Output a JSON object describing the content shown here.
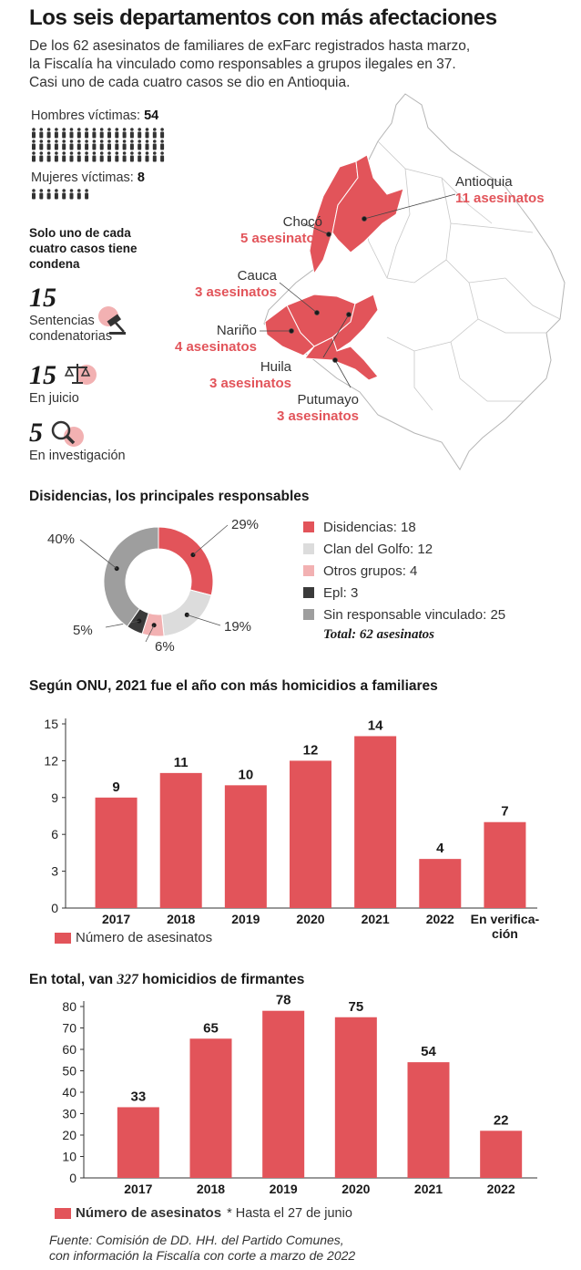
{
  "header": {
    "title": "Los seis departamentos con más afectaciones",
    "intro": "De los 62 asesinatos de familiares de exFarc registrados hasta marzo, la Fiscalía ha vinculado como responsables a grupos ilegales en 37. Casi uno de cada cuatro casos se dio en Antioquia."
  },
  "victims": {
    "men_label": "Hombres víctimas:",
    "men_value": "54",
    "women_label": "Mujeres víctimas:",
    "women_value": "8",
    "men_count": 54,
    "women_count": 8
  },
  "conviction": {
    "heading": "Solo uno de cada cuatro casos tiene condena",
    "items": [
      {
        "value": "15",
        "label": "Sentencias condenatorias",
        "icon": "gavel-icon"
      },
      {
        "value": "15",
        "label": "En juicio",
        "icon": "scales-icon"
      },
      {
        "value": "5",
        "label": "En investigación",
        "icon": "magnifier-icon"
      }
    ]
  },
  "map": {
    "highlight_color": "#e2545a",
    "departments": [
      {
        "name": "Antioquia",
        "count": "11 asesinatos"
      },
      {
        "name": "Chocó",
        "count": "5 asesinatos"
      },
      {
        "name": "Cauca",
        "count": "3 asesinatos"
      },
      {
        "name": "Nariño",
        "count": "4 asesinatos"
      },
      {
        "name": "Huila",
        "count": "3 asesinatos"
      },
      {
        "name": "Putumayo",
        "count": "3 asesinatos"
      }
    ]
  },
  "chart_data": [
    {
      "type": "pie",
      "title": "Disidencias, los principales responsables",
      "donut": true,
      "slices": [
        {
          "name": "Disidencias",
          "value": 18,
          "percent_label": "29%",
          "legend": "Disidencias: 18",
          "color": "#e2545a"
        },
        {
          "name": "Clan del Golfo",
          "value": 12,
          "percent_label": "19%",
          "legend": "Clan del Golfo:  12",
          "color": "#dcdcdc"
        },
        {
          "name": "Otros grupos",
          "value": 4,
          "percent_label": "6%",
          "legend": "Otros grupos: 4",
          "color": "#f2b1b2"
        },
        {
          "name": "Epl",
          "value": 3,
          "percent_label": "5%",
          "legend": "Epl: 3",
          "color": "#3a3a3a"
        },
        {
          "name": "Sin responsable vinculado",
          "value": 25,
          "percent_label": "40%",
          "legend": "Sin responsable vinculado: 25",
          "color": "#9e9e9e"
        }
      ],
      "total_label": "Total: 62 asesinatos"
    },
    {
      "type": "bar",
      "title": "Según ONU, 2021 fue el año con más homicidios a familiares",
      "categories": [
        "2017",
        "2018",
        "2019",
        "2020",
        "2021",
        "2022",
        "En verificación"
      ],
      "category_lines": [
        [
          "2017"
        ],
        [
          "2018"
        ],
        [
          "2019"
        ],
        [
          "2020"
        ],
        [
          "2021"
        ],
        [
          "2022"
        ],
        [
          "En verifica-",
          "ción"
        ]
      ],
      "values": [
        9,
        11,
        10,
        12,
        14,
        4,
        7
      ],
      "yticks": [
        0,
        3,
        6,
        9,
        12,
        15
      ],
      "ylim": [
        0,
        15
      ],
      "legend": "Número de asesinatos",
      "color": "#e2545a"
    },
    {
      "type": "bar",
      "title_prefix": "En total, van ",
      "title_number": "327",
      "title_suffix": " homicidios de firmantes",
      "categories": [
        "2017",
        "2018",
        "2019",
        "2020",
        "2021",
        "2022"
      ],
      "values": [
        33,
        65,
        78,
        75,
        54,
        22
      ],
      "yticks": [
        0,
        10,
        20,
        30,
        40,
        50,
        60,
        70,
        80
      ],
      "ylim": [
        0,
        80
      ],
      "legend": "Número de asesinatos",
      "note": "* Hasta el 27 de junio",
      "color": "#e2545a"
    }
  ],
  "source": {
    "line1": "Fuente: Comisión de DD. HH. del Partido Comunes,",
    "line2": "con información la Fiscalía con corte a marzo de 2022"
  }
}
